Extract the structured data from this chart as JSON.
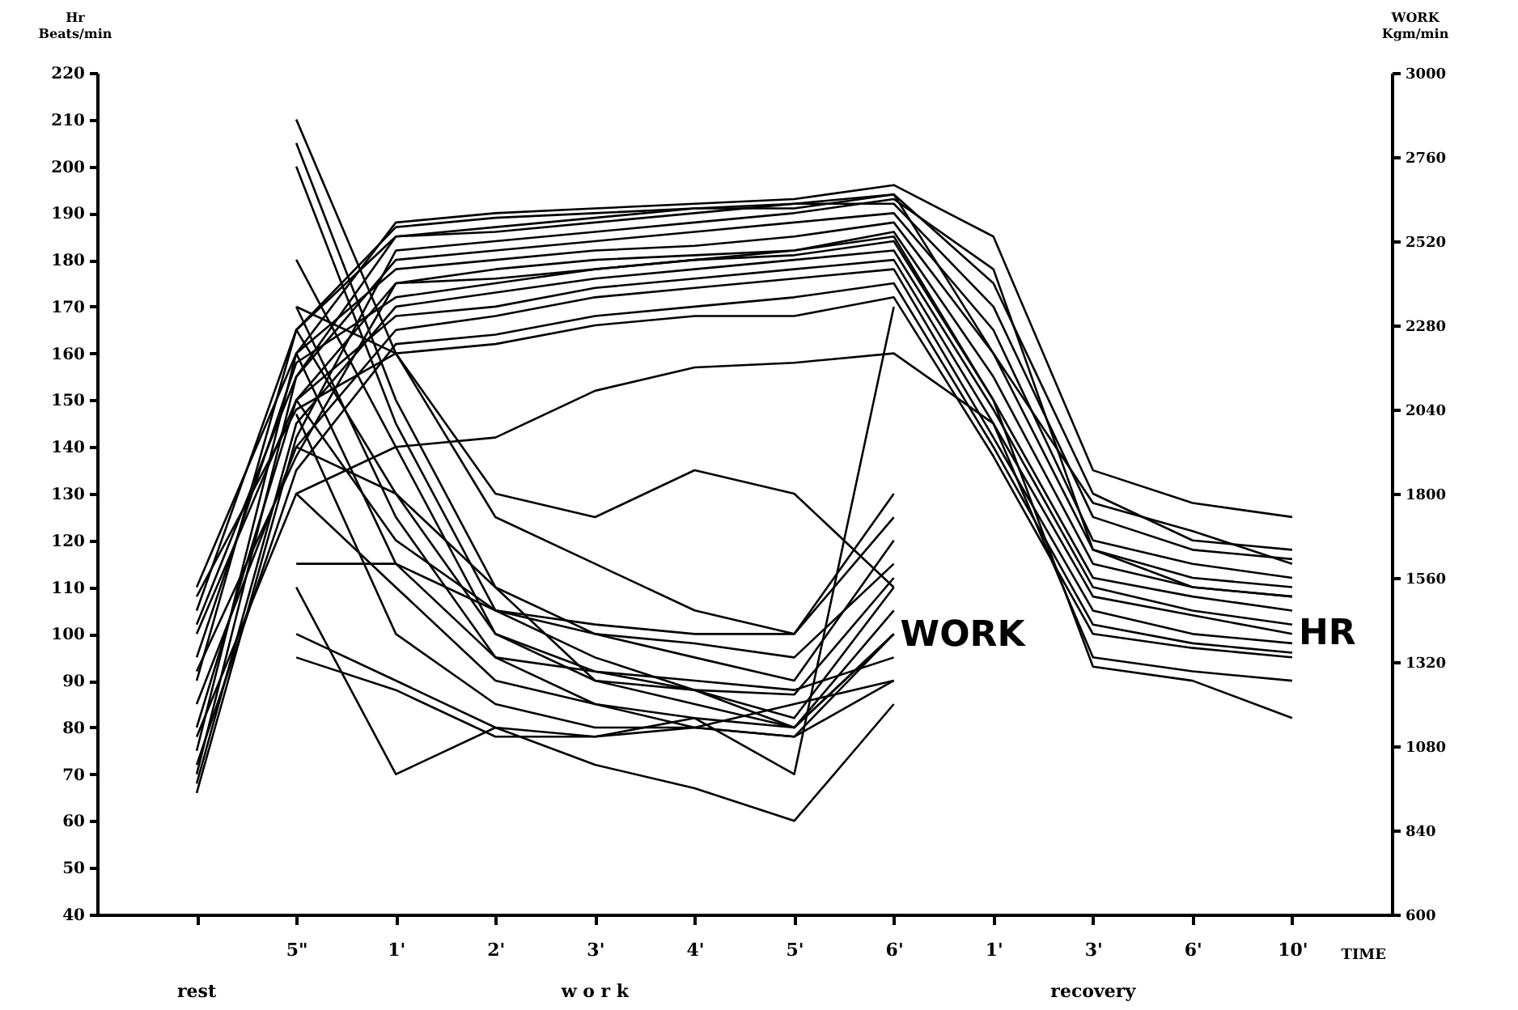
{
  "chart_data": {
    "type": "line",
    "xlabel": "TIME",
    "ylabel": "Hr Beats/min",
    "y2label": "WORK Kgm/min",
    "categories": [
      null,
      "5\"",
      "1'",
      "2'",
      "3'",
      "4'",
      "5'",
      "6'",
      "1'",
      "3'",
      "6'",
      "10'"
    ],
    "ylim": [
      40,
      220
    ],
    "yticks": [
      40,
      50,
      60,
      70,
      80,
      90,
      100,
      110,
      120,
      130,
      140,
      150,
      160,
      170,
      180,
      190,
      200,
      210,
      220
    ],
    "y2lim": [
      600,
      3000
    ],
    "y2ticks": [
      600,
      840,
      1080,
      1320,
      1560,
      1800,
      2040,
      2280,
      2520,
      2760,
      3000
    ],
    "line_style": "solid",
    "annotations": [
      "WORK",
      "HR",
      "rest",
      "w o r k",
      "recovery"
    ],
    "series": [
      {
        "color": "#000000",
        "values": [
          75,
          160,
          188,
          190,
          191,
          192,
          193,
          196,
          185,
          135,
          128,
          125
        ]
      },
      {
        "color": "#000000",
        "values": [
          90,
          165,
          187,
          189,
          190,
          191,
          192,
          194,
          175,
          130,
          120,
          118
        ]
      },
      {
        "color": "#000000",
        "values": [
          105,
          165,
          185,
          186,
          188,
          190,
          192,
          192,
          170,
          125,
          118,
          116
        ]
      },
      {
        "color": "#000000",
        "values": [
          70,
          155,
          180,
          182,
          184,
          186,
          188,
          190,
          165,
          120,
          115,
          112
        ]
      },
      {
        "color": "#000000",
        "values": [
          110,
          160,
          178,
          180,
          182,
          183,
          185,
          188,
          160,
          118,
          112,
          110
        ]
      },
      {
        "color": "#000000",
        "values": [
          80,
          150,
          175,
          178,
          180,
          181,
          182,
          186,
          155,
          115,
          110,
          108
        ]
      },
      {
        "color": "#000000",
        "values": [
          95,
          158,
          172,
          175,
          178,
          180,
          181,
          184,
          150,
          112,
          108,
          105
        ]
      },
      {
        "color": "#000000",
        "values": [
          68,
          145,
          170,
          173,
          176,
          178,
          180,
          182,
          148,
          110,
          105,
          102
        ]
      },
      {
        "color": "#000000",
        "values": [
          100,
          150,
          168,
          170,
          174,
          176,
          178,
          180,
          145,
          108,
          104,
          100
        ]
      },
      {
        "color": "#000000",
        "values": [
          85,
          140,
          165,
          168,
          172,
          174,
          176,
          178,
          142,
          105,
          100,
          98
        ]
      },
      {
        "color": "#000000",
        "values": [
          72,
          135,
          162,
          164,
          168,
          170,
          172,
          175,
          140,
          102,
          98,
          96
        ]
      },
      {
        "color": "#000000",
        "values": [
          108,
          148,
          160,
          162,
          166,
          168,
          168,
          172,
          138,
          100,
          97,
          95
        ]
      },
      {
        "color": "#000000",
        "values": [
          78,
          130,
          140,
          142,
          152,
          157,
          158,
          160,
          145,
          95,
          92,
          90
        ]
      },
      {
        "color": "#000000",
        "values": [
          92,
          138,
          175,
          176,
          178,
          180,
          182,
          185,
          150,
          93,
          90,
          82
        ]
      },
      {
        "color": "#000000",
        "values": [
          66,
          142,
          182,
          184,
          186,
          188,
          190,
          193,
          178,
          118,
          110,
          108
        ]
      },
      {
        "color": "#000000",
        "values": [
          102,
          155,
          185,
          187,
          189,
          191,
          191,
          194,
          160,
          128,
          122,
          115
        ]
      },
      {
        "axis": "y2",
        "color": "#000000",
        "values": [
          null,
          2867,
          2200,
          1733,
          1600,
          1467,
          1400,
          1800,
          null,
          null,
          null,
          null
        ]
      },
      {
        "axis": "y2",
        "color": "#000000",
        "values": [
          null,
          2800,
          2067,
          1533,
          1267,
          1200,
          1133,
          1400,
          null,
          null,
          null,
          null
        ]
      },
      {
        "axis": "y2",
        "color": "#000000",
        "values": [
          null,
          2467,
          1933,
          1400,
          1267,
          1240,
          1160,
          1533,
          null,
          null,
          null,
          null
        ]
      },
      {
        "axis": "y2",
        "color": "#000000",
        "values": [
          null,
          2333,
          1733,
          1333,
          1293,
          1267,
          1240,
          1333,
          null,
          null,
          null,
          null
        ]
      },
      {
        "axis": "y2",
        "color": "#000000",
        "values": [
          null,
          2200,
          1600,
          1333,
          1200,
          1160,
          1133,
          1467,
          null,
          null,
          null,
          null
        ]
      },
      {
        "axis": "y2",
        "color": "#000000",
        "values": [
          null,
          2067,
          1667,
          1467,
          1400,
          1333,
          1267,
          1667,
          null,
          null,
          null,
          null
        ]
      },
      {
        "axis": "y2",
        "color": "#000000",
        "values": [
          null,
          1933,
          1800,
          1533,
          1400,
          1373,
          1333,
          1600,
          null,
          null,
          null,
          null
        ]
      },
      {
        "axis": "y2",
        "color": "#000000",
        "values": [
          null,
          1800,
          1533,
          1267,
          1200,
          1133,
          1107,
          1267,
          null,
          null,
          null,
          null
        ]
      },
      {
        "axis": "y2",
        "color": "#000000",
        "values": [
          null,
          1600,
          1600,
          1467,
          1427,
          1400,
          1400,
          1733,
          null,
          null,
          null,
          null
        ]
      },
      {
        "axis": "y2",
        "color": "#000000",
        "values": [
          null,
          1533,
          1000,
          1133,
          1107,
          1160,
          1000,
          2333,
          null,
          null,
          null,
          null
        ]
      },
      {
        "axis": "y2",
        "color": "#000000",
        "values": [
          null,
          1400,
          1267,
          1133,
          1027,
          960,
          867,
          1200,
          null,
          null,
          null,
          null
        ]
      },
      {
        "axis": "y2",
        "color": "#000000",
        "values": [
          null,
          1333,
          1240,
          1107,
          1107,
          1133,
          1200,
          1267,
          null,
          null,
          null,
          null
        ]
      },
      {
        "axis": "y2",
        "color": "#000000",
        "values": [
          null,
          2333,
          2200,
          1800,
          1733,
          1867,
          1800,
          1533,
          null,
          null,
          null,
          null
        ]
      },
      {
        "axis": "y2",
        "color": "#000000",
        "values": [
          null,
          2733,
          2000,
          1467,
          1333,
          1240,
          1133,
          1400,
          null,
          null,
          null,
          null
        ]
      },
      {
        "axis": "y2",
        "color": "#000000",
        "values": [
          null,
          2267,
          1800,
          1400,
          1293,
          1240,
          1227,
          1560,
          null,
          null,
          null,
          null
        ]
      },
      {
        "axis": "y2",
        "color": "#000000",
        "values": [
          null,
          2027,
          1400,
          1200,
          1133,
          1133,
          1107,
          1400,
          null,
          null,
          null,
          null
        ]
      }
    ]
  }
}
